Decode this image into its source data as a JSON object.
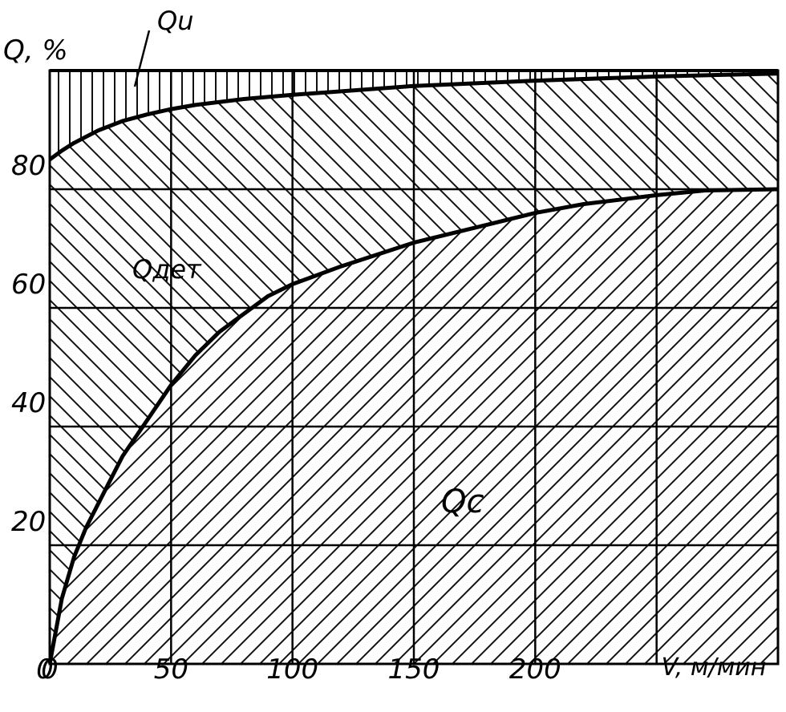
{
  "chart_data": {
    "type": "area",
    "title": "",
    "xlabel": "V, м/мин",
    "ylabel": "Q, %",
    "xlim": [
      0,
      300
    ],
    "ylim": [
      0,
      100
    ],
    "x_ticks": [
      "0",
      "50",
      "100",
      "150",
      "200"
    ],
    "y_ticks": [
      "20",
      "40",
      "60",
      "80"
    ],
    "grid": true,
    "series": [
      {
        "name": "Qc",
        "x": [
          0,
          5,
          10,
          15,
          20,
          30,
          40,
          50,
          60,
          70,
          80,
          90,
          100,
          120,
          150,
          180,
          200,
          220,
          250,
          270,
          300
        ],
        "y": [
          0,
          11,
          18,
          23,
          27,
          35,
          41,
          47,
          52,
          56,
          59,
          62,
          64,
          67,
          71,
          74,
          76,
          77.5,
          79,
          79.8,
          80
        ]
      },
      {
        "name": "Qдет",
        "x": [
          0,
          5,
          10,
          20,
          30,
          40,
          50,
          60,
          80,
          100,
          150,
          200,
          250,
          300
        ],
        "y": [
          85,
          86.5,
          87.8,
          89.9,
          91.5,
          92.6,
          93.5,
          94.2,
          95.2,
          95.9,
          97.4,
          98.3,
          99,
          99.5
        ]
      },
      {
        "name": "Qu",
        "x": [
          0,
          300
        ],
        "y": [
          100,
          100
        ]
      }
    ],
    "region_labels": [
      "Qu",
      "Qдет",
      "Qc"
    ]
  }
}
